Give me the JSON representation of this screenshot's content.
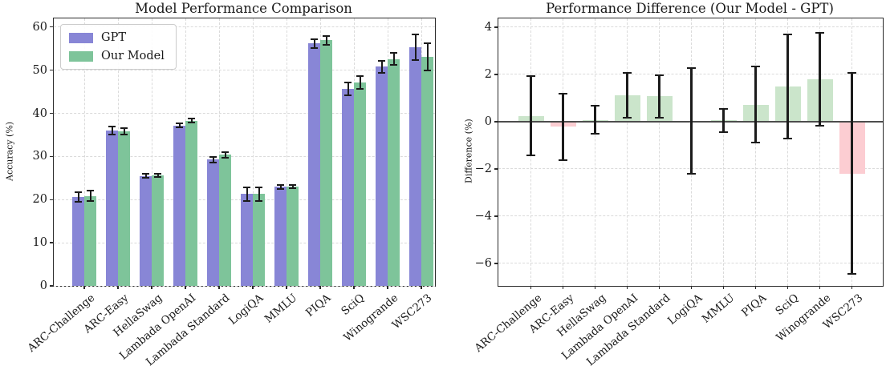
{
  "chart_data": [
    {
      "type": "bar",
      "title": "Model Performance Comparison",
      "xlabel": "",
      "ylabel": "Accuracy (%)",
      "ylim": [
        0,
        62
      ],
      "yticks": [
        0,
        10,
        20,
        30,
        40,
        50,
        60
      ],
      "grid": true,
      "legend_position": "upper left",
      "categories": [
        "ARC-Challenge",
        "ARC-Easy",
        "HellaSwag",
        "Lambada OpenAI",
        "Lambada Standard",
        "LogiQA",
        "MMLU",
        "PIQA",
        "SciQ",
        "Winogrande",
        "WSC273"
      ],
      "series": [
        {
          "name": "GPT",
          "color": "#8886d6",
          "values": [
            20.6,
            36.0,
            25.5,
            37.2,
            29.3,
            21.3,
            22.95,
            56.2,
            45.7,
            50.8,
            55.3
          ],
          "errors": [
            1.2,
            0.9,
            0.4,
            0.5,
            0.65,
            1.6,
            0.4,
            1.0,
            1.5,
            1.4,
            3.0
          ]
        },
        {
          "name": "Our Model",
          "color": "#7ec49a",
          "values": [
            20.85,
            35.8,
            25.6,
            38.3,
            30.4,
            21.3,
            23.0,
            56.9,
            47.2,
            52.6,
            53.1
          ],
          "errors": [
            1.2,
            0.8,
            0.4,
            0.5,
            0.65,
            1.6,
            0.4,
            1.0,
            1.5,
            1.4,
            3.1
          ]
        }
      ]
    },
    {
      "type": "bar",
      "title": "Performance Difference (Our Model - GPT)",
      "xlabel": "",
      "ylabel": "Difference (%)",
      "ylim": [
        -6.95,
        4.37
      ],
      "yticks": [
        4,
        2,
        0,
        -2,
        -4,
        -6
      ],
      "grid": true,
      "zero_line": true,
      "categories": [
        "ARC-Challenge",
        "ARC-Easy",
        "HellaSwag",
        "Lambada OpenAI",
        "Lambada Standard",
        "LogiQA",
        "MMLU",
        "PIQA",
        "SciQ",
        "Winogrande",
        "WSC273"
      ],
      "series": [
        {
          "name": "Difference",
          "positive_color": "#cbe5cb",
          "negative_color": "#fccdd2",
          "values": [
            0.25,
            -0.22,
            0.08,
            1.12,
            1.08,
            0.03,
            0.05,
            0.72,
            1.49,
            1.8,
            -2.19
          ],
          "errors": [
            1.68,
            1.4,
            0.6,
            0.95,
            0.9,
            2.25,
            0.5,
            1.62,
            2.2,
            1.97,
            4.25
          ]
        }
      ]
    }
  ],
  "colors": {
    "gpt_bar": "#8886d6",
    "our_model_bar": "#7ec49a",
    "positive_diff_bar": "#cbe5cb",
    "negative_diff_bar": "#fccdd2",
    "error_bar": "#1b1b1b",
    "grid": "#dadada",
    "zero_line": "#4d4d4d"
  }
}
